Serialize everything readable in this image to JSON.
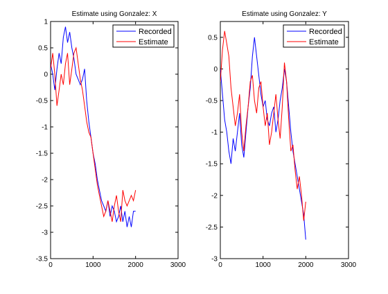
{
  "chart_data": [
    {
      "type": "line",
      "title": "Estimate using Gonzalez: X",
      "xlabel": "",
      "ylabel": "",
      "xlim": [
        0,
        3000
      ],
      "ylim": [
        -3.5,
        1
      ],
      "xticks": [
        "0",
        "1000",
        "2000",
        "3000"
      ],
      "xtick_values": [
        0,
        1000,
        2000,
        3000
      ],
      "yticks": [
        "1",
        "0.5",
        "0",
        "-0.5",
        "-1",
        "-1.5",
        "-2",
        "-2.5",
        "-3",
        "-3.5"
      ],
      "ytick_values": [
        1,
        0.5,
        0,
        -0.5,
        -1,
        -1.5,
        -2,
        -2.5,
        -3,
        -3.5
      ],
      "legend_position": "top-right",
      "series": [
        {
          "name": "Recorded",
          "color": "#0000ff",
          "x": [
            0,
            50,
            100,
            150,
            200,
            250,
            300,
            350,
            400,
            450,
            500,
            550,
            600,
            650,
            700,
            750,
            800,
            850,
            900,
            950,
            1000,
            1050,
            1100,
            1150,
            1200,
            1250,
            1300,
            1350,
            1400,
            1450,
            1500,
            1550,
            1600,
            1650,
            1700,
            1750,
            1800,
            1850,
            1900,
            1950,
            2000
          ],
          "y": [
            0.2,
            0.0,
            -0.3,
            0.1,
            0.4,
            0.2,
            0.7,
            0.9,
            0.6,
            0.8,
            0.5,
            0.3,
            0.0,
            -0.1,
            -0.2,
            -0.1,
            0.1,
            -0.5,
            -0.9,
            -1.2,
            -1.5,
            -1.7,
            -2.0,
            -2.2,
            -2.4,
            -2.5,
            -2.6,
            -2.4,
            -2.7,
            -2.5,
            -2.6,
            -2.8,
            -2.7,
            -2.5,
            -2.8,
            -2.6,
            -2.9,
            -2.7,
            -2.9,
            -2.6,
            -2.6
          ]
        },
        {
          "name": "Estimate",
          "color": "#ff0000",
          "x": [
            0,
            50,
            100,
            150,
            200,
            250,
            300,
            350,
            400,
            450,
            500,
            550,
            600,
            650,
            700,
            750,
            800,
            850,
            900,
            950,
            1000,
            1050,
            1100,
            1150,
            1200,
            1250,
            1300,
            1350,
            1400,
            1450,
            1500,
            1550,
            1600,
            1650,
            1700,
            1750,
            1800,
            1850,
            1900,
            1950,
            2000
          ],
          "y": [
            0.1,
            0.4,
            0.0,
            -0.6,
            -0.3,
            0.0,
            -0.2,
            0.2,
            0.4,
            -0.2,
            0.1,
            0.4,
            0.5,
            0.2,
            -0.1,
            -0.3,
            -0.6,
            -0.9,
            -1.1,
            -1.2,
            -1.5,
            -1.8,
            -2.1,
            -2.3,
            -2.5,
            -2.7,
            -2.6,
            -2.4,
            -2.6,
            -2.8,
            -2.5,
            -2.3,
            -2.6,
            -2.8,
            -2.2,
            -2.4,
            -2.5,
            -2.4,
            -2.3,
            -2.4,
            -2.2
          ]
        }
      ]
    },
    {
      "type": "line",
      "title": "Estimate using Gonzalez: Y",
      "xlabel": "",
      "ylabel": "",
      "xlim": [
        0,
        3000
      ],
      "ylim": [
        -3,
        0.75
      ],
      "xticks": [
        "0",
        "1000",
        "2000",
        "3000"
      ],
      "xtick_values": [
        0,
        1000,
        2000,
        3000
      ],
      "yticks": [
        "0.5",
        "0",
        "-0.5",
        "-1",
        "-1.5",
        "-2",
        "-2.5",
        "-3"
      ],
      "ytick_values": [
        0.5,
        0,
        -0.5,
        -1,
        -1.5,
        -2,
        -2.5,
        -3
      ],
      "legend_position": "top-right",
      "series": [
        {
          "name": "Recorded",
          "color": "#0000ff",
          "x": [
            0,
            50,
            100,
            150,
            200,
            250,
            300,
            350,
            400,
            450,
            500,
            550,
            600,
            650,
            700,
            750,
            800,
            850,
            900,
            950,
            1000,
            1050,
            1100,
            1150,
            1200,
            1250,
            1300,
            1350,
            1400,
            1450,
            1500,
            1550,
            1600,
            1650,
            1700,
            1750,
            1800,
            1850,
            1900,
            1950,
            2000
          ],
          "y": [
            0.0,
            -0.4,
            -0.8,
            -1.0,
            -1.3,
            -1.5,
            -1.1,
            -1.3,
            -1.0,
            -0.7,
            -1.2,
            -1.4,
            -1.0,
            -0.6,
            -0.3,
            0.2,
            0.5,
            0.2,
            -0.1,
            -0.4,
            -0.6,
            -0.5,
            -0.8,
            -0.9,
            -0.7,
            -0.6,
            -1.0,
            -0.8,
            -0.5,
            -0.3,
            0.0,
            -0.2,
            -0.6,
            -1.0,
            -1.3,
            -1.5,
            -1.7,
            -1.9,
            -2.1,
            -2.3,
            -2.7
          ]
        },
        {
          "name": "Estimate",
          "color": "#ff0000",
          "x": [
            0,
            50,
            100,
            150,
            200,
            250,
            300,
            350,
            400,
            450,
            500,
            550,
            600,
            650,
            700,
            750,
            800,
            850,
            900,
            950,
            1000,
            1050,
            1100,
            1150,
            1200,
            1250,
            1300,
            1350,
            1400,
            1450,
            1500,
            1550,
            1600,
            1650,
            1700,
            1750,
            1800,
            1850,
            1900,
            1950,
            2000
          ],
          "y": [
            -0.2,
            0.3,
            0.6,
            0.4,
            0.2,
            -0.3,
            -0.6,
            -0.9,
            -0.7,
            -0.4,
            -1.0,
            -1.3,
            -0.9,
            -0.6,
            -0.2,
            -0.1,
            -0.5,
            -0.7,
            -0.3,
            -0.2,
            -0.6,
            -0.9,
            -0.7,
            -1.2,
            -1.0,
            -0.7,
            -0.4,
            -0.8,
            -1.1,
            -0.6,
            0.1,
            -0.2,
            -0.8,
            -1.3,
            -1.2,
            -1.6,
            -1.9,
            -1.7,
            -2.0,
            -2.4,
            -2.1
          ]
        }
      ]
    }
  ]
}
